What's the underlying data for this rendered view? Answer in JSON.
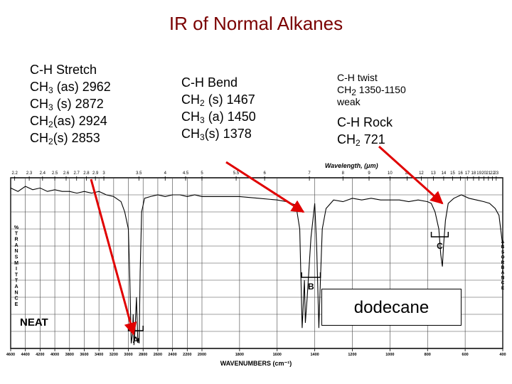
{
  "title": "IR of Normal Alkanes",
  "annotations": {
    "stretch": {
      "heading": "C-H Stretch",
      "lines": [
        {
          "pre": "CH",
          "sub": "3",
          "post": " (as) 2962"
        },
        {
          "pre": "CH",
          "sub": "3",
          "post": " (s) 2872"
        },
        {
          "pre": "CH",
          "sub": "2",
          "post": "(as) 2924"
        },
        {
          "pre": "CH",
          "sub": "2",
          "post": "(s) 2853"
        }
      ]
    },
    "bend": {
      "heading": "C-H Bend",
      "lines": [
        {
          "pre": "CH",
          "sub": "2",
          "post": " (s) 1467"
        },
        {
          "pre": "CH",
          "sub": "3",
          "post": " (a) 1450"
        },
        {
          "pre": "CH",
          "sub": "3",
          "post": "(s) 1378"
        }
      ]
    },
    "twist": {
      "heading": "C-H twist",
      "line": {
        "pre": "CH",
        "sub": "2",
        "post": " 1350-1150"
      },
      "note": "weak"
    },
    "rock": {
      "heading": "C-H Rock",
      "line": {
        "pre": "CH",
        "sub": "2",
        "post": " 721"
      }
    }
  },
  "sample_label": "dodecane",
  "colors": {
    "title": "#7a0000",
    "arrow": "#e00000",
    "ink": "#000000"
  },
  "chart_data": {
    "type": "line",
    "title": "",
    "top_axis_label": "Wavelength, (μm)",
    "xlabel": "WAVENUMBERS (cm⁻¹)",
    "ylabel_left": "%TRANSMITTANCE",
    "ylabel_right": "ABSORBANCE",
    "sample_tag": "NEAT",
    "xlim": [
      4600,
      400
    ],
    "top_ticks": [
      "2.2",
      "2.3",
      "2.4",
      "2.5",
      "2.6",
      "2.7",
      "2.8",
      "2.9",
      "3",
      "3.5",
      "4",
      "4.5",
      "5",
      "5.5",
      "6",
      "7",
      "8",
      "9",
      "10",
      "11",
      "12",
      "13",
      "14",
      "15",
      "16",
      "17",
      "18",
      "19",
      "20",
      "21",
      "22",
      "23"
    ],
    "bottom_ticks": [
      "4600",
      "4400",
      "4200",
      "4000",
      "3800",
      "3600",
      "3400",
      "3200",
      "3000",
      "2800",
      "2600",
      "2400",
      "2200",
      "2000",
      "1800",
      "1600",
      "1400",
      "1200",
      "1000",
      "800",
      "600",
      "400"
    ],
    "region_labels": [
      {
        "label": "A",
        "from": 3000,
        "to": 2800
      },
      {
        "label": "B",
        "from": 1470,
        "to": 1370
      },
      {
        "label": "C",
        "from": 780,
        "to": 690
      }
    ],
    "series": [
      {
        "x": [
          4600,
          4500,
          4400,
          4300,
          4200,
          4100,
          4000,
          3900,
          3800,
          3700,
          3600,
          3500,
          3400,
          3300,
          3200,
          3100,
          3050,
          3000,
          2980,
          2962,
          2945,
          2935,
          2924,
          2910,
          2890,
          2872,
          2862,
          2853,
          2840,
          2820,
          2780,
          2700,
          2600,
          2500,
          2400,
          2300,
          2200,
          2100,
          2000,
          1900,
          1800,
          1700,
          1600,
          1550,
          1500,
          1480,
          1467,
          1455,
          1450,
          1440,
          1420,
          1400,
          1390,
          1378,
          1370,
          1360,
          1340,
          1300,
          1250,
          1200,
          1150,
          1100,
          1050,
          1000,
          950,
          900,
          850,
          800,
          780,
          760,
          740,
          730,
          721,
          715,
          705,
          690,
          660,
          620,
          580,
          540,
          500,
          470,
          440,
          420,
          400
        ],
        "y": [
          94,
          92,
          95,
          93,
          94,
          92,
          93,
          92,
          92,
          91,
          92,
          91,
          92,
          90,
          89,
          86,
          80,
          70,
          40,
          3,
          8,
          20,
          2,
          10,
          30,
          4,
          6,
          3,
          45,
          80,
          88,
          89,
          90,
          89,
          90,
          90,
          89,
          90,
          89,
          89,
          89,
          88,
          87,
          86,
          84,
          70,
          12,
          40,
          15,
          30,
          65,
          85,
          60,
          12,
          40,
          70,
          82,
          87,
          86,
          88,
          87,
          88,
          87,
          87,
          87,
          86,
          87,
          86,
          85,
          80,
          70,
          55,
          48,
          60,
          75,
          85,
          88,
          90,
          88,
          87,
          86,
          85,
          82,
          78,
          60
        ]
      }
    ]
  }
}
